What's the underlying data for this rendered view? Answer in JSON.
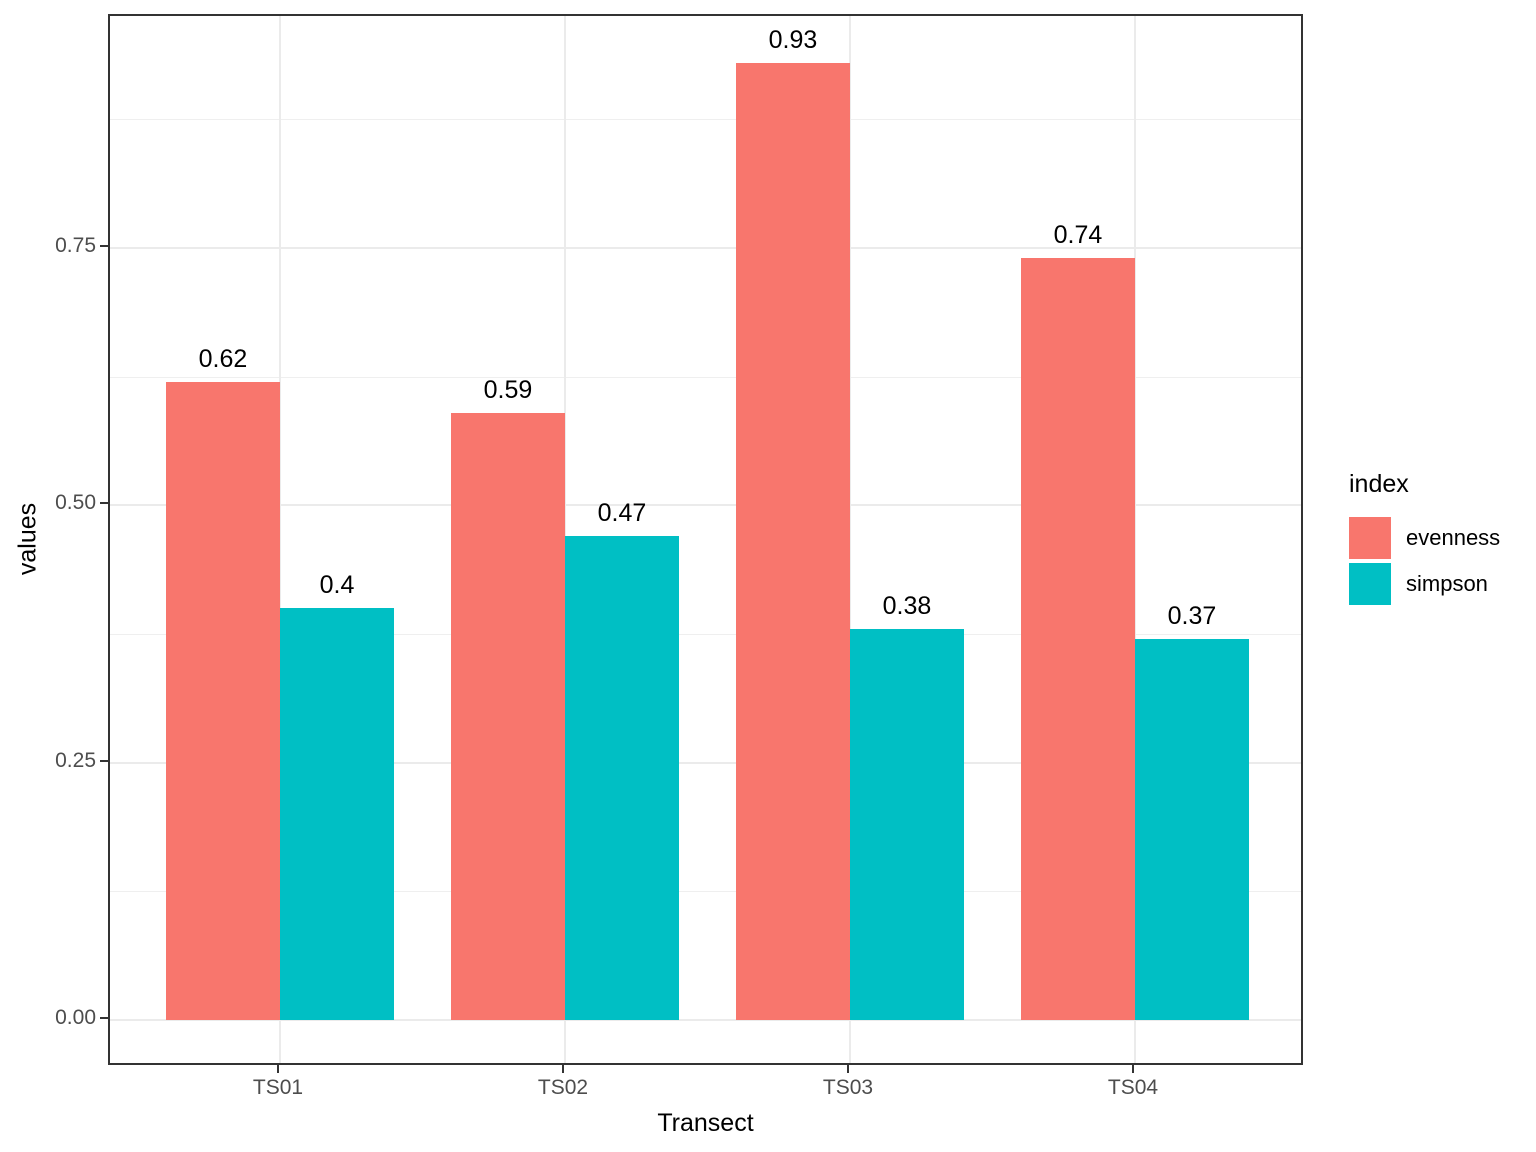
{
  "chart_data": {
    "type": "bar",
    "title": "",
    "xlabel": "Transect",
    "ylabel": "values",
    "categories": [
      "TS01",
      "TS02",
      "TS03",
      "TS04"
    ],
    "series": [
      {
        "name": "evenness",
        "color": "#F8766D",
        "values": [
          0.62,
          0.59,
          0.93,
          0.74
        ],
        "labels": [
          "0.62",
          "0.59",
          "0.93",
          "0.74"
        ]
      },
      {
        "name": "simpson",
        "color": "#00BFC4",
        "values": [
          0.4,
          0.47,
          0.38,
          0.37
        ],
        "labels": [
          "0.4",
          "0.47",
          "0.38",
          "0.37"
        ]
      }
    ],
    "y_ticks": [
      {
        "value": 0.0,
        "label": "0.00"
      },
      {
        "value": 0.25,
        "label": "0.25"
      },
      {
        "value": 0.5,
        "label": "0.50"
      },
      {
        "value": 0.75,
        "label": "0.75"
      }
    ],
    "y_minor_ticks": [
      0.125,
      0.375,
      0.625,
      0.875
    ],
    "ylim": [
      -0.046,
      0.975
    ],
    "grid": true,
    "legend": {
      "title": "index",
      "position": "right"
    },
    "colors": {
      "evenness": "#F8766D",
      "simpson": "#00BFC4",
      "grid_major": "#EBEBEB",
      "panel_border": "#333333",
      "tick_text": "#4D4D4D",
      "label_text": "#000000",
      "background": "#FFFFFF"
    }
  }
}
